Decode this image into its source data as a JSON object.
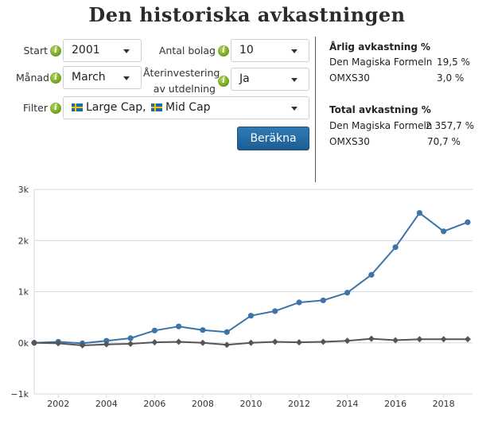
{
  "page_title": "Den historiska avkastningen",
  "form": {
    "start_label": "Start",
    "start_value": "2001",
    "antal_label": "Antal bolag",
    "antal_value": "10",
    "manad_label": "Månad",
    "manad_value": "March",
    "aterinv_label_line1": "Återinvestering",
    "aterinv_label_line2": "av utdelning",
    "aterinv_value": "Ja",
    "filter_label": "Filter",
    "filter_value_1": "Large Cap,",
    "filter_value_2": "Mid Cap",
    "info_glyph": "i",
    "calc_button": "Beräkna"
  },
  "stats": {
    "annual": {
      "title": "Årlig avkastning %",
      "rows": [
        {
          "name": "Den Magiska Formeln",
          "value": "19,5 %"
        },
        {
          "name": "OMXS30",
          "value": "3,0 %"
        }
      ]
    },
    "total": {
      "title": "Total avkastning %",
      "rows": [
        {
          "name": "Den Magiska Formeln",
          "value": "2 357,7 %"
        },
        {
          "name": "OMXS30",
          "value": "70,7 %"
        }
      ]
    }
  },
  "colors": {
    "series_magic": "#3d74a8",
    "series_omx": "#555555",
    "button": "#23679f",
    "info_icon": "#7aa82a"
  },
  "chart_data": {
    "type": "line",
    "title": "",
    "xlabel": "",
    "ylabel": "",
    "xlim": [
      2001,
      2019.2
    ],
    "ylim": [
      -1000,
      3000
    ],
    "x_ticks": [
      2002,
      2004,
      2006,
      2008,
      2010,
      2012,
      2014,
      2016,
      2018
    ],
    "y_ticks": [
      -1000,
      0,
      1000,
      2000,
      3000
    ],
    "y_tick_labels": [
      "−1k",
      "0k",
      "1k",
      "2k",
      "3k"
    ],
    "grid": "horizontal",
    "legend": "none",
    "series": [
      {
        "x": [
          2001,
          2002,
          2003,
          2004,
          2005,
          2006,
          2007,
          2008,
          2009,
          2010,
          2011,
          2012,
          2013,
          2014,
          2015,
          2016,
          2017,
          2018,
          2019
        ],
        "values": [
          0,
          20,
          -10,
          40,
          90,
          240,
          320,
          250,
          210,
          530,
          620,
          790,
          830,
          980,
          1330,
          1870,
          2540,
          2180,
          2358
        ],
        "color": "#3d74a8"
      },
      {
        "x": [
          2001,
          2002,
          2003,
          2004,
          2005,
          2006,
          2007,
          2008,
          2009,
          2010,
          2011,
          2012,
          2013,
          2014,
          2015,
          2016,
          2017,
          2018,
          2019
        ],
        "values": [
          0,
          -10,
          -50,
          -30,
          -20,
          10,
          20,
          0,
          -40,
          0,
          20,
          10,
          20,
          40,
          80,
          50,
          70,
          70,
          71
        ],
        "color": "#555555"
      }
    ]
  }
}
